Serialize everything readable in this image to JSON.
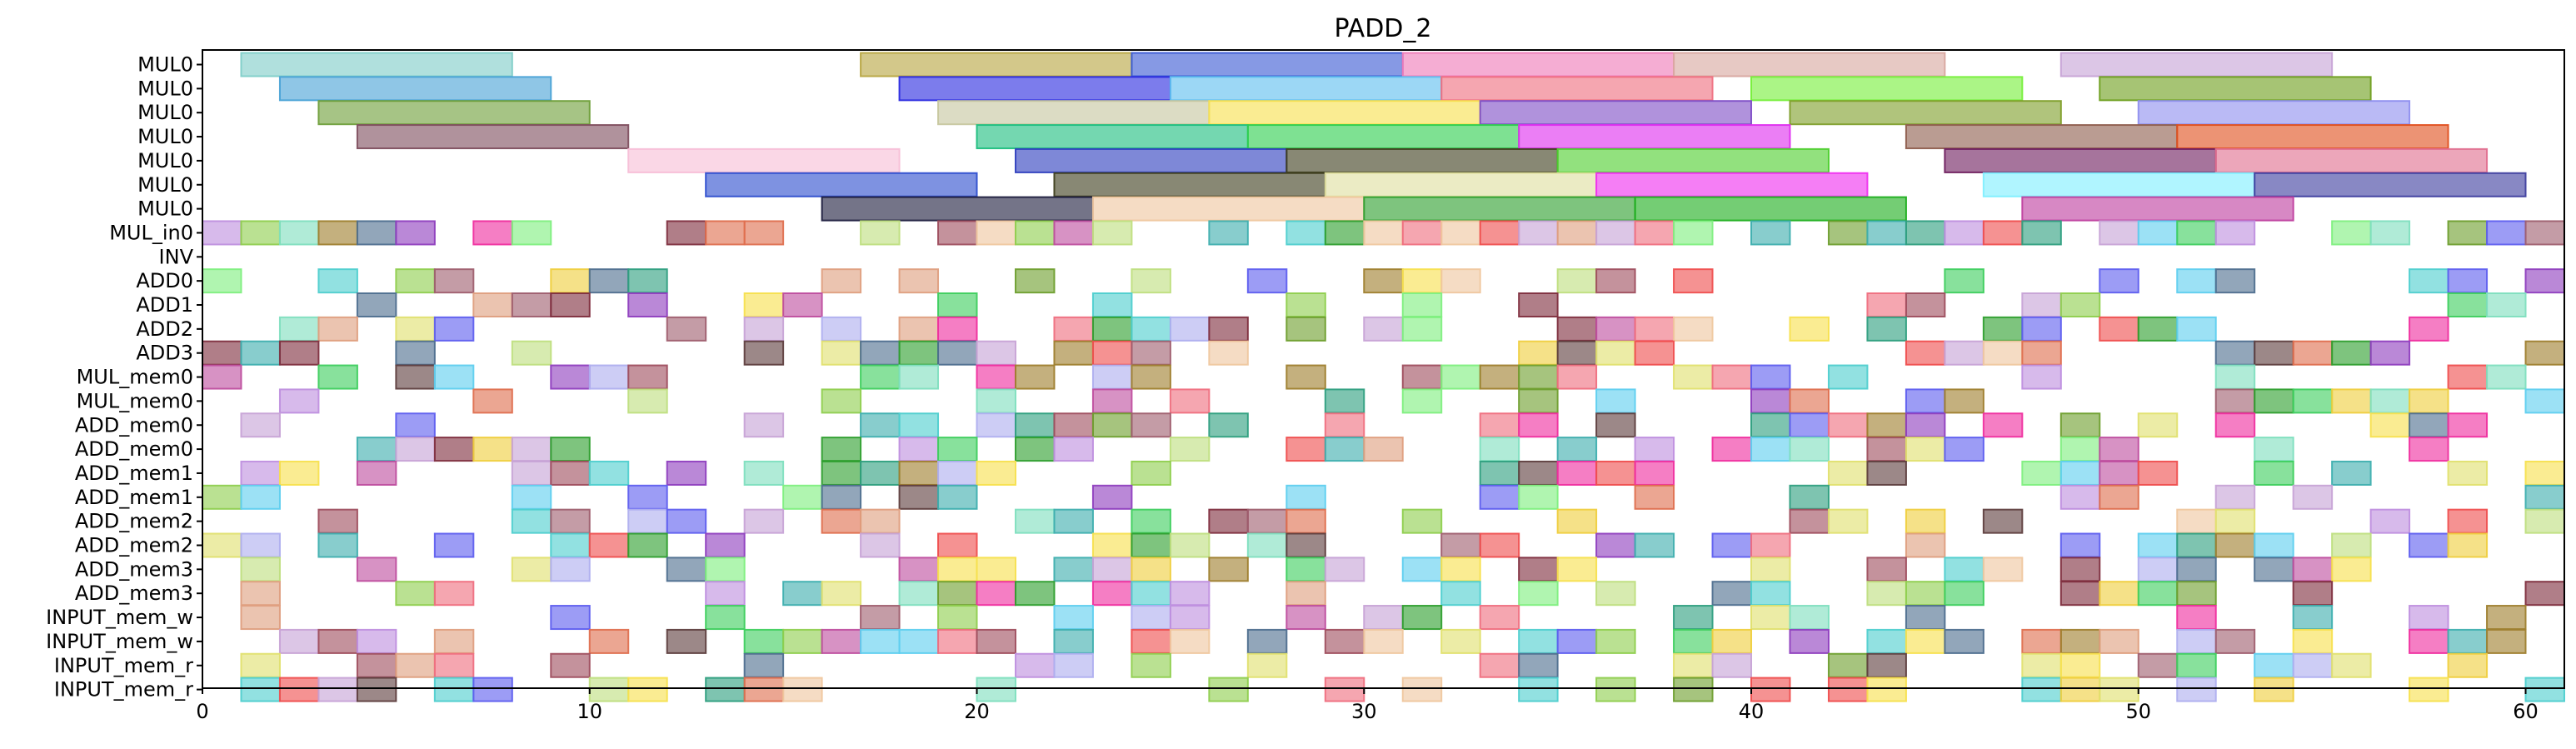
{
  "chart_data": {
    "type": "gantt",
    "title": "PADD_2",
    "xlim": [
      0,
      61
    ],
    "x_ticks": [
      0,
      10,
      20,
      30,
      40,
      50,
      60
    ],
    "rows": [
      "MUL0",
      "MUL0",
      "MUL0",
      "MUL0",
      "MUL0",
      "MUL0",
      "MUL0",
      "MUL_in0",
      "INV",
      "ADD0",
      "ADD1",
      "ADD2",
      "ADD3",
      "MUL_mem0",
      "MUL_mem0",
      "ADD_mem0",
      "ADD_mem0",
      "ADD_mem1",
      "ADD_mem1",
      "ADD_mem2",
      "ADD_mem2",
      "ADD_mem3",
      "ADD_mem3",
      "INPUT_mem_w",
      "INPUT_mem_w",
      "INPUT_mem_r",
      "INPUT_mem_r"
    ],
    "segments": [
      {
        "row": 0,
        "start": 1,
        "end": 8,
        "color": "#7fcdc8"
      },
      {
        "row": 0,
        "start": 17,
        "end": 24,
        "color": "#b8a642"
      },
      {
        "row": 0,
        "start": 24,
        "end": 31,
        "color": "#3b5bd4"
      },
      {
        "row": 0,
        "start": 31,
        "end": 38,
        "color": "#ef7ab8"
      },
      {
        "row": 0,
        "start": 38,
        "end": 45,
        "color": "#d9a8a0"
      },
      {
        "row": 0,
        "start": 48,
        "end": 55,
        "color": "#c7a3d6"
      },
      {
        "row": 1,
        "start": 2,
        "end": 9,
        "color": "#4aa3d6"
      },
      {
        "row": 1,
        "start": 18,
        "end": 25,
        "color": "#2b2be0"
      },
      {
        "row": 1,
        "start": 25,
        "end": 32,
        "color": "#5fbfef"
      },
      {
        "row": 1,
        "start": 32,
        "end": 39,
        "color": "#ef6f7f"
      },
      {
        "row": 1,
        "start": 40,
        "end": 47,
        "color": "#77ef3b"
      },
      {
        "row": 1,
        "start": 49,
        "end": 56,
        "color": "#6f9f1f"
      },
      {
        "row": 2,
        "start": 3,
        "end": 10,
        "color": "#6f9f3a"
      },
      {
        "row": 2,
        "start": 19,
        "end": 26,
        "color": "#c7c79f"
      },
      {
        "row": 2,
        "start": 26,
        "end": 33,
        "color": "#f7e04f"
      },
      {
        "row": 2,
        "start": 33,
        "end": 40,
        "color": "#7f4fc7"
      },
      {
        "row": 2,
        "start": 41,
        "end": 48,
        "color": "#7f9f2b"
      },
      {
        "row": 2,
        "start": 50,
        "end": 57,
        "color": "#8f8fef"
      },
      {
        "row": 3,
        "start": 4,
        "end": 11,
        "color": "#7f4f5f"
      },
      {
        "row": 3,
        "start": 20,
        "end": 27,
        "color": "#1fbf7f"
      },
      {
        "row": 3,
        "start": 27,
        "end": 34,
        "color": "#2fcf4f"
      },
      {
        "row": 3,
        "start": 34,
        "end": 41,
        "color": "#df2fef"
      },
      {
        "row": 3,
        "start": 44,
        "end": 51,
        "color": "#8f5f4f"
      },
      {
        "row": 3,
        "start": 51,
        "end": 58,
        "color": "#e0501f"
      },
      {
        "row": 4,
        "start": 11,
        "end": 18,
        "color": "#f7bfd7"
      },
      {
        "row": 4,
        "start": 21,
        "end": 28,
        "color": "#2f3fbf"
      },
      {
        "row": 4,
        "start": 28,
        "end": 35,
        "color": "#3f3f1f"
      },
      {
        "row": 4,
        "start": 35,
        "end": 42,
        "color": "#4fcf2f"
      },
      {
        "row": 4,
        "start": 45,
        "end": 52,
        "color": "#6f1f5f"
      },
      {
        "row": 4,
        "start": 52,
        "end": 59,
        "color": "#e06f8f"
      },
      {
        "row": 5,
        "start": 13,
        "end": 20,
        "color": "#2f4fcf"
      },
      {
        "row": 5,
        "start": 22,
        "end": 29,
        "color": "#3f3f1f"
      },
      {
        "row": 5,
        "start": 29,
        "end": 36,
        "color": "#dfdf9f"
      },
      {
        "row": 5,
        "start": 36,
        "end": 43,
        "color": "#ef2fef"
      },
      {
        "row": 5,
        "start": 46,
        "end": 53,
        "color": "#7fefff"
      },
      {
        "row": 5,
        "start": 53,
        "end": 60,
        "color": "#3f3f9f"
      },
      {
        "row": 6,
        "start": 16,
        "end": 23,
        "color": "#1f1f3f"
      },
      {
        "row": 6,
        "start": 23,
        "end": 30,
        "color": "#efc79f"
      },
      {
        "row": 6,
        "start": 30,
        "end": 37,
        "color": "#2f9f2f"
      },
      {
        "row": 6,
        "start": 37,
        "end": 44,
        "color": "#1faf1f"
      },
      {
        "row": 6,
        "start": 47,
        "end": 54,
        "color": "#bf3f9f"
      }
    ]
  }
}
